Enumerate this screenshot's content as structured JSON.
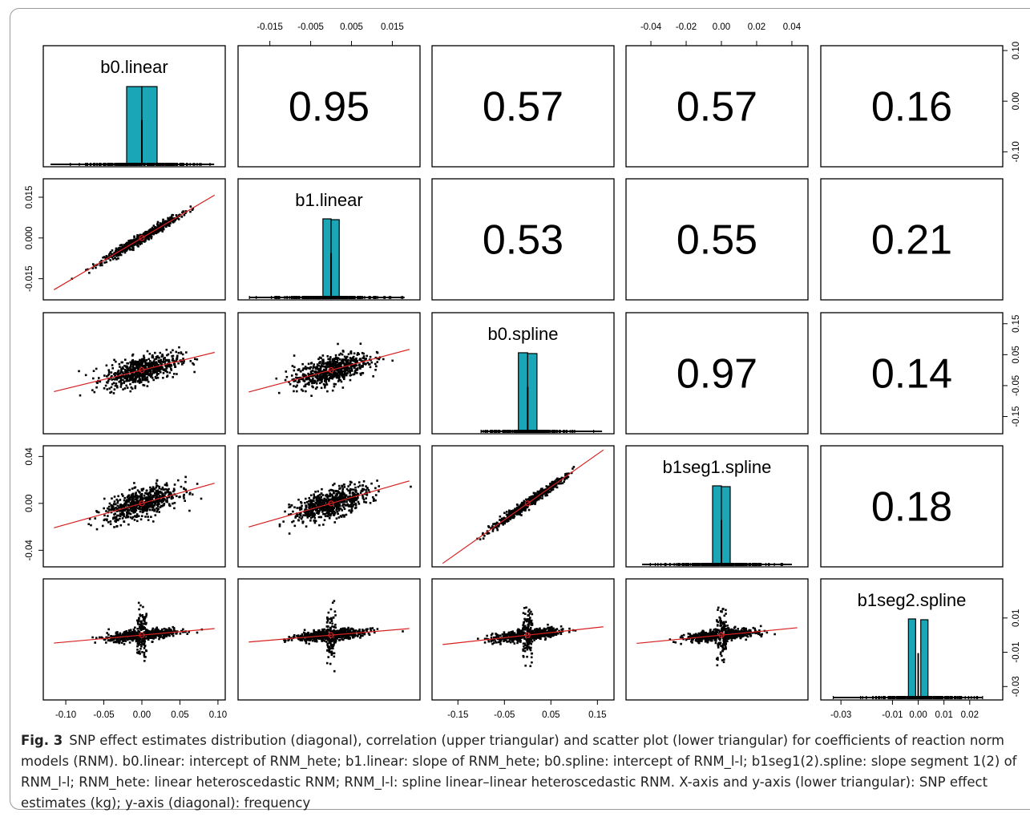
{
  "figure": {
    "caption_label": "Fig. 3",
    "caption_text": "SNP effect estimates distribution (diagonal), correlation (upper triangular) and scatter plot (lower triangular) for coefficients of reaction norm models (RNM). b0.linear: intercept of RNM_hete; b1.linear: slope of RNM_hete; b0.spline: intercept of RNM_l-l; b1seg1(2).spline: slope segment 1(2) of RNM_l-l; RNM_hete: linear heteroscedastic RNM; RNM_l-l: spline linear–linear heteroscedastic RNM. X-axis and y-axis (lower triangular): SNP effect estimates (kg); y-axis (diagonal): frequency"
  },
  "chart_data": {
    "type": "scatter",
    "variables": [
      "b0.linear",
      "b1.linear",
      "b0.spline",
      "b1seg1.spline",
      "b1seg2.spline"
    ],
    "correlations": [
      {
        "row": 0,
        "col": 1,
        "value": "0.95"
      },
      {
        "row": 0,
        "col": 2,
        "value": "0.57"
      },
      {
        "row": 0,
        "col": 3,
        "value": "0.57"
      },
      {
        "row": 0,
        "col": 4,
        "value": "0.16"
      },
      {
        "row": 1,
        "col": 2,
        "value": "0.53"
      },
      {
        "row": 1,
        "col": 3,
        "value": "0.55"
      },
      {
        "row": 1,
        "col": 4,
        "value": "0.21"
      },
      {
        "row": 2,
        "col": 3,
        "value": "0.97"
      },
      {
        "row": 2,
        "col": 4,
        "value": "0.14"
      },
      {
        "row": 3,
        "col": 4,
        "value": "0.18"
      }
    ],
    "ranges": [
      [
        -0.12,
        0.1
      ],
      [
        -0.021,
        0.02
      ],
      [
        -0.19,
        0.17
      ],
      [
        -0.05,
        0.045
      ],
      [
        -0.035,
        0.03
      ]
    ],
    "tick_labels": {
      "bottom": [
        {
          "var": 0,
          "values": [
            -0.1,
            -0.05,
            0.0,
            0.05,
            0.1
          ],
          "labels": [
            "-0.10",
            "-0.05",
            "0.00",
            "0.05",
            "0.10"
          ]
        },
        {
          "var": 2,
          "values": [
            -0.15,
            -0.05,
            0.05,
            0.15
          ],
          "labels": [
            "-0.15",
            "-0.05",
            "0.05",
            "0.15"
          ]
        },
        {
          "var": 4,
          "values": [
            -0.03,
            -0.01,
            0.0,
            0.01,
            0.02
          ],
          "labels": [
            "-0.03",
            "-0.01",
            "0.00",
            "0.01",
            "0.02"
          ]
        }
      ],
      "top": [
        {
          "var": 1,
          "values": [
            -0.015,
            -0.005,
            0.005,
            0.015
          ],
          "labels": [
            "-0.015",
            "-0.005",
            "0.005",
            "0.015"
          ]
        },
        {
          "var": 3,
          "values": [
            -0.04,
            -0.02,
            0.0,
            0.02,
            0.04
          ],
          "labels": [
            "-0.04",
            "-0.02",
            "0.00",
            "0.02",
            "0.04"
          ]
        }
      ],
      "left": [
        {
          "var": 1,
          "values": [
            -0.015,
            0.0,
            0.015
          ],
          "labels": [
            "-0.015",
            "0.000",
            "0.015"
          ]
        },
        {
          "var": 3,
          "values": [
            -0.04,
            0.0,
            0.04
          ],
          "labels": [
            "-0.04",
            "0.00",
            "0.04"
          ]
        }
      ],
      "right": [
        {
          "var": 0,
          "values": [
            -0.1,
            0.0,
            0.1
          ],
          "labels": [
            "-0.10",
            "0.00",
            "0.10"
          ]
        },
        {
          "var": 2,
          "values": [
            -0.15,
            -0.05,
            0.05,
            0.15
          ],
          "labels": [
            "-0.15",
            "-0.05",
            "0.05",
            "0.15"
          ]
        },
        {
          "var": 4,
          "values": [
            -0.03,
            -0.01,
            0.01
          ],
          "labels": [
            "-0.03",
            "-0.01",
            "0.01"
          ]
        }
      ]
    },
    "histograms": [
      {
        "var": 0,
        "label": "b0.linear",
        "bins": [
          [
            -0.02,
            0.0
          ],
          [
            0.0,
            0.02
          ]
        ],
        "heights": [
          0.97,
          0.97
        ],
        "rug_range": [
          -0.12,
          0.095
        ]
      },
      {
        "var": 1,
        "label": "b1.linear",
        "bins": [
          [
            -0.002,
            0.0
          ],
          [
            0.0,
            0.002
          ]
        ],
        "heights": [
          0.98,
          0.97
        ],
        "rug_range": [
          -0.02,
          0.018
        ]
      },
      {
        "var": 2,
        "label": "b0.spline",
        "bins": [
          [
            -0.02,
            0.0
          ],
          [
            0.0,
            0.02
          ]
        ],
        "heights": [
          0.98,
          0.97
        ],
        "rug_range": [
          -0.1,
          0.16
        ]
      },
      {
        "var": 3,
        "label": "b1seg1.spline",
        "bins": [
          [
            -0.005,
            0.0
          ],
          [
            0.0,
            0.005
          ]
        ],
        "heights": [
          0.98,
          0.97
        ],
        "rug_range": [
          -0.045,
          0.04
        ]
      },
      {
        "var": 4,
        "label": "b1seg2.spline",
        "bins": [
          [
            -0.002,
            0.0
          ],
          [
            0.0,
            0.002
          ]
        ],
        "heights": [
          0.98,
          0.97
        ],
        "rug_range": [
          -0.033,
          0.025
        ]
      }
    ],
    "scatter_fit": [
      {
        "row": 1,
        "col": 0,
        "intercept": 0.0,
        "slope": 0.165
      },
      {
        "row": 2,
        "col": 0,
        "intercept": 0.0,
        "slope": 0.6
      },
      {
        "row": 2,
        "col": 1,
        "intercept": 0.0,
        "slope": 3.5
      },
      {
        "row": 3,
        "col": 0,
        "intercept": 0.0,
        "slope": 0.18
      },
      {
        "row": 3,
        "col": 1,
        "intercept": 0.0,
        "slope": 1.0
      },
      {
        "row": 3,
        "col": 2,
        "intercept": 0.0,
        "slope": 0.28
      },
      {
        "row": 4,
        "col": 0,
        "intercept": 0.0,
        "slope": 0.04
      },
      {
        "row": 4,
        "col": 1,
        "intercept": 0.0,
        "slope": 0.2
      },
      {
        "row": 4,
        "col": 2,
        "intercept": 0.0,
        "slope": 0.03
      },
      {
        "row": 4,
        "col": 3,
        "intercept": 0.0,
        "slope": 0.1
      }
    ],
    "colors": {
      "histogram": "#1aa6b7",
      "fit_line": "#d62020",
      "points": "#000000"
    }
  }
}
